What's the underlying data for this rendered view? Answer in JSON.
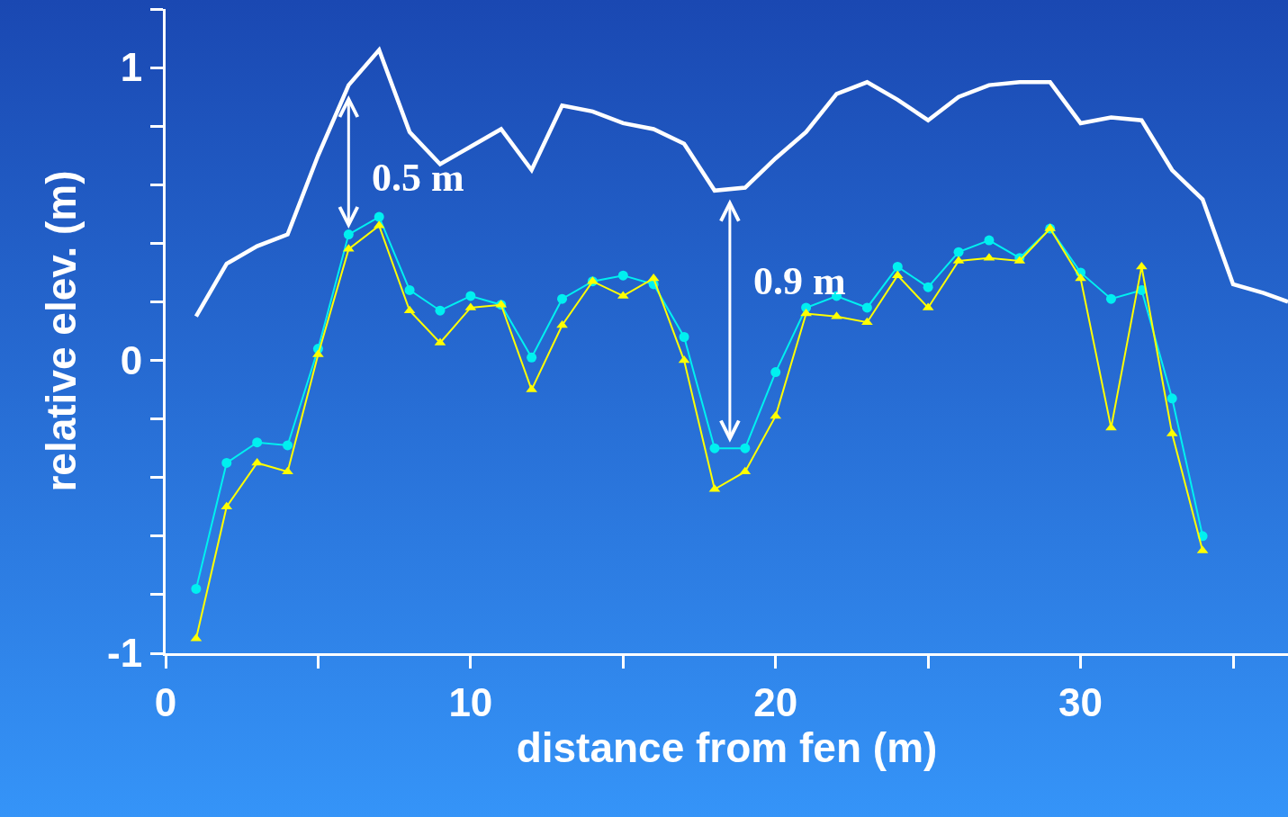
{
  "chart_data": {
    "type": "line",
    "xlabel": "distance from fen (m)",
    "ylabel": "relative elev. (m)",
    "xlim": [
      0,
      36.8
    ],
    "xticks": [
      0,
      {
        "value": 5,
        "label": null
      },
      10,
      {
        "value": 15,
        "label": null
      },
      20,
      {
        "value": 25,
        "label": null
      },
      30,
      {
        "value": 35,
        "label": null
      }
    ],
    "ylim": [
      -1,
      1.2
    ],
    "yticks": [
      -1,
      {
        "value": -0.8,
        "label": null
      },
      {
        "value": -0.6,
        "label": null
      },
      {
        "value": -0.4,
        "label": null
      },
      {
        "value": -0.2,
        "label": null
      },
      0,
      {
        "value": 0.2,
        "label": null
      },
      {
        "value": 0.4,
        "label": null
      },
      {
        "value": 0.6,
        "label": null
      },
      {
        "value": 0.8,
        "label": null
      },
      1,
      {
        "value": 1.2,
        "label": null
      }
    ],
    "grid": false,
    "series": [
      {
        "color": "#ffffff",
        "marker": "none",
        "x": [
          1,
          2,
          3,
          4,
          5,
          6,
          7,
          8,
          9,
          10,
          11,
          12,
          13,
          14,
          15,
          16,
          17,
          18,
          19,
          20,
          21,
          22,
          23,
          24,
          25,
          26,
          27,
          28,
          29,
          30,
          31,
          32,
          33,
          34,
          35,
          36,
          36.8
        ],
        "values": [
          0.15,
          0.33,
          0.39,
          0.43,
          0.7,
          0.94,
          1.06,
          0.78,
          0.67,
          0.73,
          0.79,
          0.65,
          0.87,
          0.85,
          0.81,
          0.79,
          0.74,
          0.58,
          0.59,
          0.69,
          0.78,
          0.91,
          0.95,
          0.89,
          0.82,
          0.9,
          0.94,
          0.95,
          0.95,
          0.81,
          0.83,
          0.82,
          0.65,
          0.55,
          0.26,
          0.23,
          0.2
        ]
      },
      {
        "color": "#00f0f0",
        "marker": "circle",
        "x": [
          1,
          2,
          3,
          4,
          5,
          6,
          7,
          8,
          9,
          10,
          11,
          12,
          13,
          14,
          15,
          16,
          17,
          18,
          19,
          20,
          21,
          22,
          23,
          24,
          25,
          26,
          27,
          28,
          29,
          30,
          31,
          32,
          33,
          34
        ],
        "values": [
          -0.78,
          -0.35,
          -0.28,
          -0.29,
          0.04,
          0.43,
          0.49,
          0.24,
          0.17,
          0.22,
          0.19,
          0.01,
          0.21,
          0.27,
          0.29,
          0.26,
          0.08,
          -0.3,
          -0.3,
          -0.04,
          0.18,
          0.22,
          0.18,
          0.32,
          0.25,
          0.37,
          0.41,
          0.35,
          0.45,
          0.3,
          0.21,
          0.24,
          -0.13,
          -0.6
        ]
      },
      {
        "color": "#ffff00",
        "marker": "triangle",
        "x": [
          1,
          2,
          3,
          4,
          5,
          6,
          7,
          8,
          9,
          10,
          11,
          12,
          13,
          14,
          15,
          16,
          17,
          18,
          19,
          20,
          21,
          22,
          23,
          24,
          25,
          26,
          27,
          28,
          29,
          30,
          31,
          32,
          33,
          34
        ],
        "values": [
          -0.95,
          -0.5,
          -0.35,
          -0.38,
          0.02,
          0.38,
          0.46,
          0.17,
          0.06,
          0.18,
          0.19,
          -0.1,
          0.12,
          0.27,
          0.22,
          0.28,
          0.0,
          -0.44,
          -0.38,
          -0.19,
          0.16,
          0.15,
          0.13,
          0.29,
          0.18,
          0.34,
          0.35,
          0.34,
          0.45,
          0.28,
          -0.23,
          0.32,
          -0.25,
          -0.65
        ]
      }
    ],
    "annotations": [
      {
        "text": "0.5 m",
        "x": 6,
        "y": 0.94
      },
      {
        "text": "0.9 m",
        "x": 18.5,
        "y": 0.585
      }
    ]
  }
}
